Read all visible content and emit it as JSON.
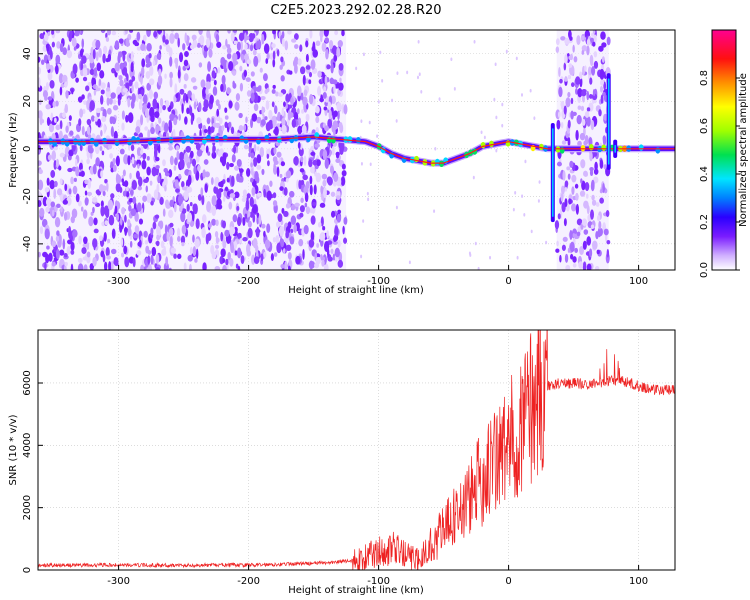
{
  "figure": {
    "title": "C2E5.2023.292.02.28.R20"
  },
  "chart_data": [
    {
      "type": "heatmap",
      "title": "",
      "xlabel": "Height of straight line (km)",
      "ylabel": "Frequency (Hz)",
      "xlim": [
        -362,
        128
      ],
      "ylim": [
        -51,
        50
      ],
      "xticks": [
        -300,
        -200,
        -100,
        0,
        100
      ],
      "yticks": [
        -40,
        -20,
        0,
        20,
        40
      ],
      "colorbar": {
        "label": "Normalized spectral amplitude",
        "range": [
          0,
          1
        ],
        "ticks": [
          0.0,
          0.2,
          0.4,
          0.6,
          0.8
        ],
        "colors": [
          "#ffffff",
          "#d0b0ff",
          "#7a1cff",
          "#2a00ff",
          "#0080ff",
          "#00e5ff",
          "#00e050",
          "#a0ff00",
          "#ffff00",
          "#ff9000",
          "#ff1010",
          "#ff0090"
        ]
      },
      "ridge": {
        "x": [
          -362,
          -300,
          -250,
          -200,
          -180,
          -150,
          -130,
          -110,
          -100,
          -90,
          -80,
          -70,
          -60,
          -50,
          -40,
          -30,
          -20,
          -10,
          0,
          10,
          20,
          30,
          40,
          60,
          80,
          90,
          100,
          128
        ],
        "y": [
          3,
          3,
          4,
          4,
          4,
          5,
          4,
          3,
          1,
          -2,
          -4,
          -5,
          -6,
          -6,
          -4,
          -2,
          1,
          2,
          3,
          2,
          1,
          0,
          0,
          0,
          0,
          0,
          0,
          0
        ]
      },
      "noise_regions": [
        {
          "x": [
            -362,
            -125
          ],
          "density": 0.9
        },
        {
          "x": [
            37,
            77
          ],
          "density": 0.8
        }
      ],
      "spikes": [
        {
          "x": 34,
          "y": [
            -30,
            10
          ]
        },
        {
          "x": 77,
          "y": [
            -8,
            31
          ]
        },
        {
          "x": 82,
          "y": [
            -3,
            3
          ]
        }
      ],
      "grid": true
    },
    {
      "type": "line",
      "title": "",
      "xlabel": "Height of straight line (km)",
      "ylabel": "SNR (10 * v/v)",
      "xlim": [
        -362,
        128
      ],
      "ylim": [
        0,
        7700
      ],
      "xticks": [
        -300,
        -200,
        -100,
        0,
        100
      ],
      "yticks": [
        0,
        2000,
        4000,
        6000
      ],
      "color": "#ee2222",
      "grid": true,
      "series": [
        {
          "x": [
            -362,
            -300,
            -250,
            -200,
            -160,
            -140,
            -120,
            -110,
            -100,
            -90,
            -80,
            -70,
            -60,
            -50,
            -40,
            -30,
            -20,
            -10,
            0,
            10,
            20,
            30,
            40,
            50,
            60,
            70,
            80,
            90,
            100,
            110,
            128
          ],
          "y": [
            150,
            160,
            150,
            160,
            200,
            230,
            300,
            400,
            600,
            700,
            500,
            300,
            800,
            1300,
            1800,
            2300,
            3000,
            3500,
            4000,
            4800,
            5500,
            5900,
            6000,
            6000,
            5950,
            6000,
            6100,
            6050,
            5900,
            5800,
            5750
          ]
        }
      ]
    }
  ]
}
